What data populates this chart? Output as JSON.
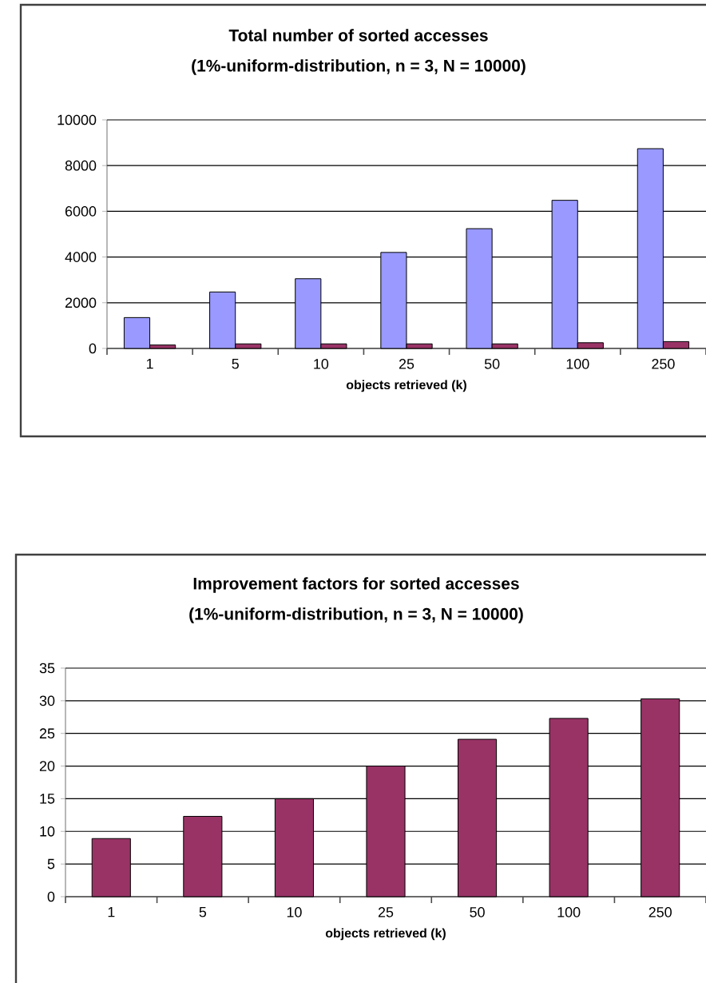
{
  "chart_data": [
    {
      "type": "bar",
      "title": "Total number of sorted accesses",
      "subtitle": "(1%-uniform-distribution, n = 3, N = 10000)",
      "xlabel": "objects retrieved (k)",
      "categories": [
        "1",
        "5",
        "10",
        "25",
        "50",
        "100",
        "250"
      ],
      "series": [
        {
          "color": "#9999ff",
          "values": [
            1350,
            2470,
            3050,
            4200,
            5240,
            6480,
            8740
          ]
        },
        {
          "color": "#993366",
          "values": [
            150,
            200,
            200,
            200,
            200,
            250,
            300
          ]
        }
      ],
      "ylim": [
        0,
        10000
      ],
      "yticks": [
        0,
        2000,
        4000,
        6000,
        8000,
        10000
      ],
      "grid": "y"
    },
    {
      "type": "bar",
      "title": "Improvement factors for sorted accesses",
      "subtitle": "(1%-uniform-distribution, n = 3, N = 10000)",
      "xlabel": "objects retrieved (k)",
      "categories": [
        "1",
        "5",
        "10",
        "25",
        "50",
        "100",
        "250"
      ],
      "values": [
        8.9,
        12.3,
        15.0,
        20.0,
        24.1,
        27.3,
        30.3
      ],
      "color": "#993366",
      "ylim": [
        0,
        35
      ],
      "yticks": [
        0,
        5,
        10,
        15,
        20,
        25,
        30,
        35
      ],
      "grid": "y"
    }
  ]
}
